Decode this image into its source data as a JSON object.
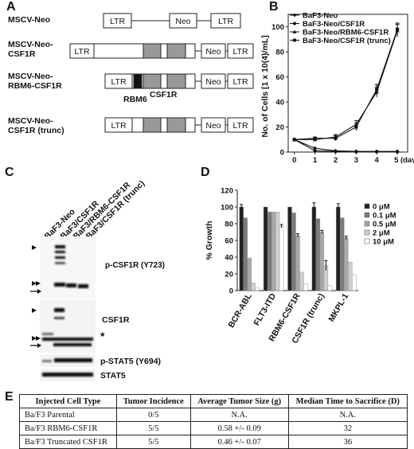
{
  "panel_letters": {
    "a": "A",
    "b": "B",
    "c": "C",
    "d": "D",
    "e": "E"
  },
  "panelA": {
    "constructs": [
      {
        "name": "MSCV-Neo"
      },
      {
        "name": "MSCV-Neo-\nCSF1R"
      },
      {
        "name": "MSCV-Neo-\nRBM6-CSF1R"
      },
      {
        "name": "MSCV-Neo-\nCSF1R (trunc)"
      }
    ],
    "ltr": "LTR",
    "neo": "Neo",
    "rbm6_label": "RBM6",
    "csf1r_label": "CSF1R"
  },
  "panelC": {
    "lanes": [
      "BaF3-Neo",
      "BaF3/CSF1R",
      "BaF3/RBM6-CSF1R",
      "BaF3/CSF1R (trunc)"
    ],
    "blots": [
      "p-CSF1R (Y723)",
      "CSF1R",
      "p-STAT5 (Y694)",
      "STAT5"
    ],
    "asterisk": "*"
  },
  "chart_data": [
    {
      "type": "line",
      "panel": "B",
      "ylabel": "No. of Cells [1 x 10(4)/mL]",
      "x": [
        0,
        1,
        2,
        3,
        4,
        5
      ],
      "x_ticks": [
        "0",
        "1",
        "2",
        "3",
        "4",
        "5 (day)"
      ],
      "y_ticks": [
        "0",
        "20",
        "40",
        "60",
        "80",
        "100"
      ],
      "ylim": [
        0,
        110
      ],
      "xlim": [
        -0.3,
        5.5
      ],
      "legend_position": "top-left",
      "series": [
        {
          "name": "BaF3-Neo",
          "marker": "diamond",
          "values": [
            10,
            3,
            1,
            0.5,
            0.5,
            0.5
          ]
        },
        {
          "name": "BaF3-Neo/CSF1R",
          "marker": "circle",
          "values": [
            10,
            1,
            0.5,
            0.3,
            0.3,
            0.3
          ]
        },
        {
          "name": "BaF3-Neo/RBM6-CSF1R",
          "marker": "triangle",
          "values": [
            10,
            10,
            12,
            22,
            48,
            97
          ],
          "err": [
            0,
            1,
            2,
            3,
            4,
            5
          ]
        },
        {
          "name": "BaF3-Neo/CSF1R (trunc)",
          "marker": "square",
          "values": [
            10,
            11,
            11,
            20,
            50,
            98
          ],
          "err": [
            0,
            1,
            2,
            3,
            4,
            5
          ]
        }
      ]
    },
    {
      "type": "bar",
      "panel": "D",
      "ylabel": "% Growth",
      "categories": [
        "BCR-ABL",
        "FLT3-ITD",
        "RBM6-CSF1R",
        "CSF1R (trunc)",
        "MKPL-1"
      ],
      "y_ticks": [
        "0",
        "20",
        "40",
        "60",
        "80",
        "100",
        "120"
      ],
      "ylim": [
        0,
        120
      ],
      "legend_position": "right",
      "series": [
        {
          "name": "0 μM",
          "color": "#222222",
          "values": [
            100,
            100,
            100,
            100,
            100
          ],
          "err": [
            3,
            0,
            0,
            5,
            4
          ]
        },
        {
          "name": "0.1 μM",
          "color": "#7a7a7a",
          "values": [
            87,
            94,
            93,
            86,
            87
          ],
          "err": [
            0,
            0,
            0,
            0,
            0
          ]
        },
        {
          "name": "0.5 μM",
          "color": "#a8a8a8",
          "values": [
            39,
            94,
            66,
            70,
            63
          ],
          "err": [
            0,
            0,
            2,
            2,
            2
          ]
        },
        {
          "name": "2 μM",
          "color": "#cfcfcf",
          "values": [
            9,
            94,
            22,
            30,
            34
          ],
          "err": [
            0,
            0,
            0,
            6,
            0
          ]
        },
        {
          "name": "10 μM",
          "color": "#ffffff",
          "values": [
            3,
            77,
            8,
            6,
            19
          ],
          "err": [
            0,
            2,
            0,
            0,
            0
          ]
        }
      ]
    }
  ],
  "panelE": {
    "headers": [
      "Injected Cell Type",
      "Tumor Incidence",
      "Average Tumor Size (g)",
      "Median Time to Sacrifice (D)"
    ],
    "rows": [
      [
        "Ba/F3 Parental",
        "0/5",
        "N.A.",
        "N.A."
      ],
      [
        "Ba/F3 RBM6-CSF1R",
        "5/5",
        "0.58 +/- 0.09",
        "32"
      ],
      [
        "Ba/F3 Truncated CSF1R",
        "5/5",
        "0.46 +/- 0.07",
        "36"
      ]
    ]
  }
}
